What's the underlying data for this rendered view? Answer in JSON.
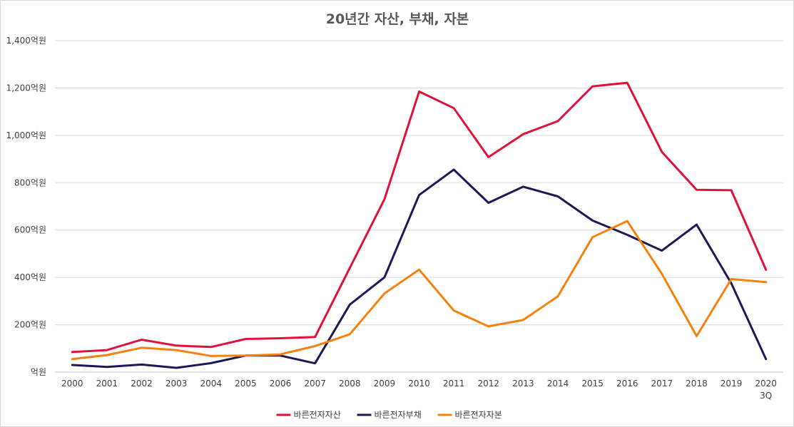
{
  "chart_data": {
    "type": "line",
    "title": "20년간 자산, 부채, 자본",
    "categories": [
      "2000",
      "2001",
      "2002",
      "2003",
      "2004",
      "2005",
      "2006",
      "2007",
      "2008",
      "2009",
      "2010",
      "2011",
      "2012",
      "2013",
      "2014",
      "2015",
      "2016",
      "2017",
      "2018",
      "2019",
      "2020\n3Q"
    ],
    "series": [
      {
        "name": "바른전자자산",
        "color": "#e0123a",
        "values": [
          85,
          93,
          137,
          112,
          106,
          140,
          143,
          148,
          440,
          730,
          1185,
          1115,
          908,
          1005,
          1060,
          1207,
          1222,
          930,
          770,
          768,
          432
        ]
      },
      {
        "name": "바른전자부채",
        "color": "#1f1856",
        "values": [
          30,
          22,
          32,
          18,
          38,
          70,
          70,
          37,
          285,
          400,
          748,
          855,
          715,
          783,
          742,
          640,
          580,
          513,
          623,
          375,
          55
        ]
      },
      {
        "name": "바른전자자본",
        "color": "#f5820f",
        "values": [
          55,
          72,
          103,
          93,
          68,
          70,
          75,
          110,
          160,
          332,
          433,
          260,
          193,
          220,
          320,
          570,
          638,
          415,
          152,
          393,
          380
        ]
      }
    ],
    "yticks": [
      "억원",
      "200억원",
      "400억원",
      "600억원",
      "800억원",
      "1,000억원",
      "1,200억원",
      "1,400억원"
    ],
    "ylim": [
      0,
      1400
    ],
    "grid": true,
    "legend": "bottom"
  }
}
